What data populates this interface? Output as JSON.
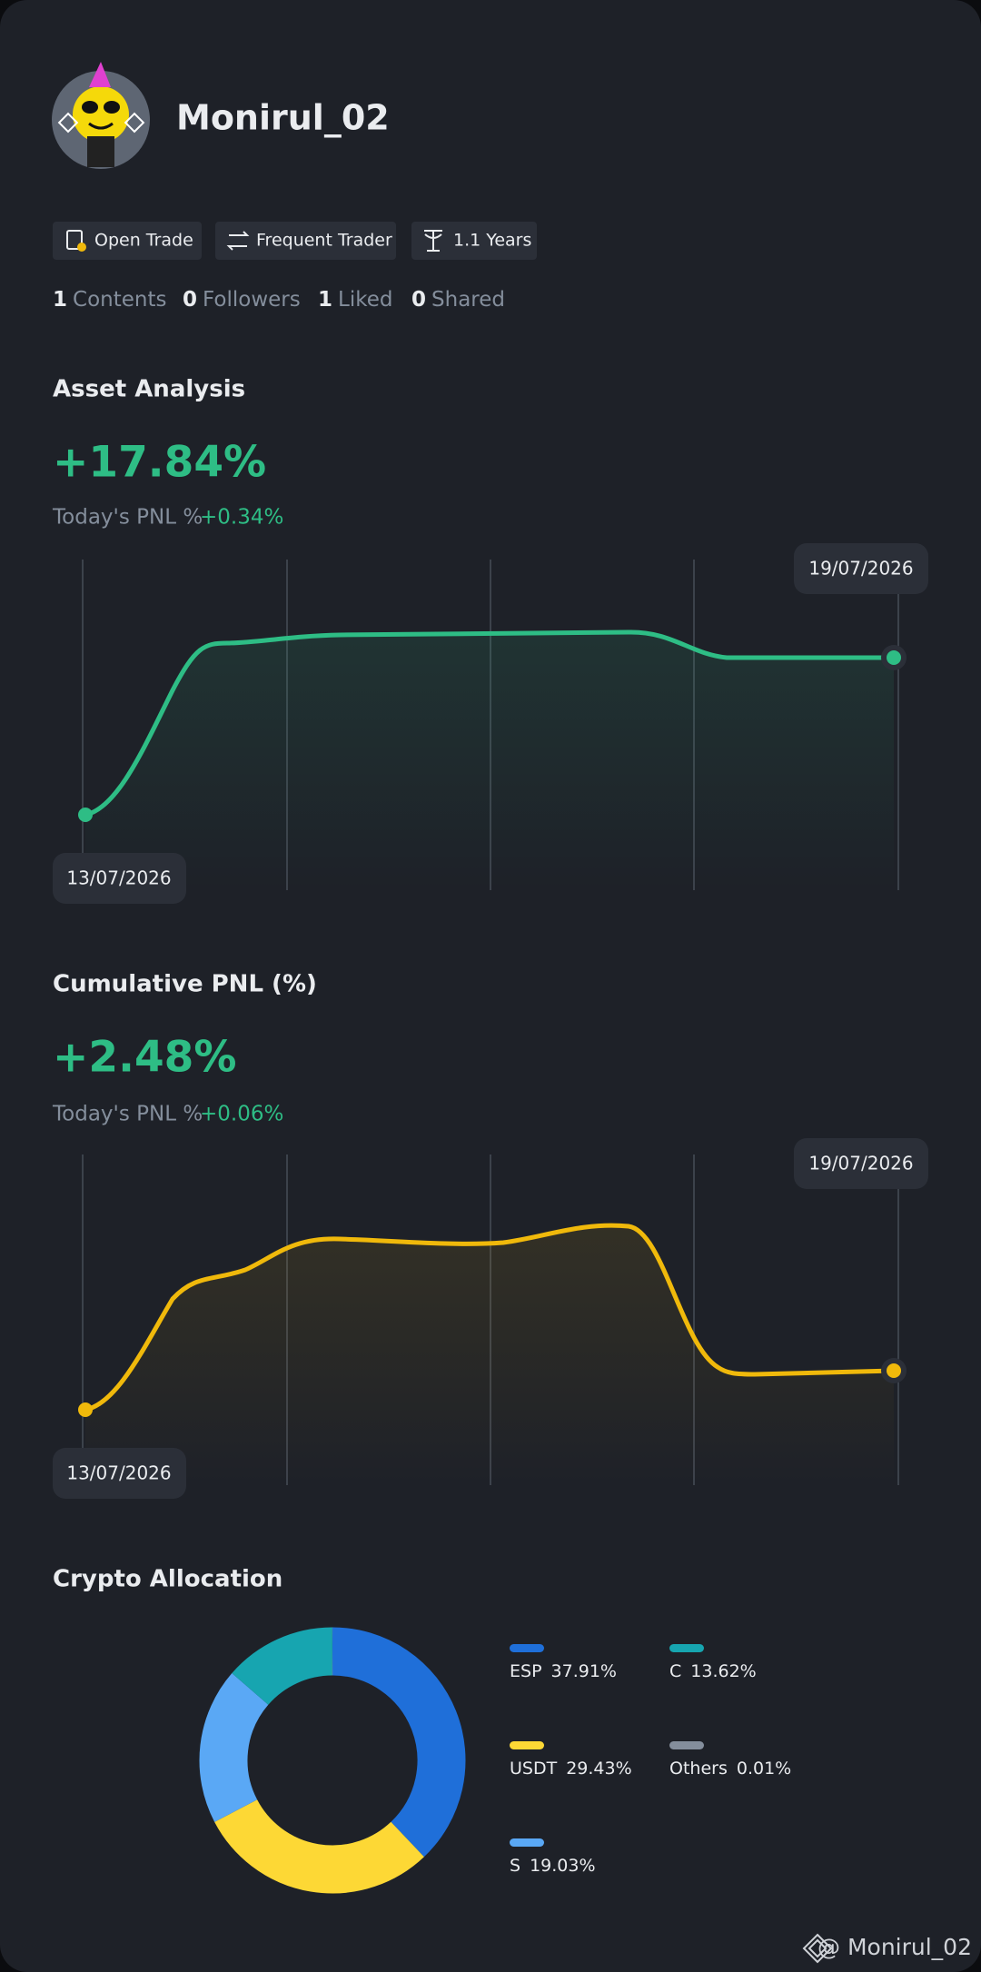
{
  "profile": {
    "username": "Monirul_02",
    "badges": [
      "Open Trade",
      "Frequent Trader",
      "1.1 Years"
    ],
    "stats": [
      {
        "count": 1,
        "label": "Contents"
      },
      {
        "count": 0,
        "label": "Followers"
      },
      {
        "count": 1,
        "label": "Liked"
      },
      {
        "count": 0,
        "label": "Shared"
      }
    ]
  },
  "asset_analysis": {
    "title": "Asset Analysis",
    "value": "+17.84%",
    "todays_pnl_label": "Today's PNL %",
    "todays_pnl": "+0.34%",
    "start_date": "13/07/2026",
    "end_date": "19/07/2026"
  },
  "cumulative_pnl": {
    "title": "Cumulative PNL (%)",
    "value": "+2.48%",
    "todays_pnl_label": "Today's PNL %",
    "todays_pnl": "+0.06%",
    "start_date": "13/07/2026",
    "end_date": "19/07/2026"
  },
  "chart_data": {
    "type": "pie",
    "donut": true,
    "title": "Crypto Allocation",
    "categories": [
      "ESP",
      "USDT",
      "S",
      "C",
      "Others"
    ],
    "values": [
      37.91,
      29.43,
      19.03,
      13.62,
      0.01
    ],
    "value_labels": [
      "37.91%",
      "29.43%",
      "19.03%",
      "13.62%",
      "0.01%"
    ],
    "colors": [
      "#1f6fd9",
      "#fdd835",
      "#5aa8f5",
      "#17a5b0",
      "#848e9c"
    ]
  },
  "footer": {
    "watermark": "@ Monirul_02"
  }
}
